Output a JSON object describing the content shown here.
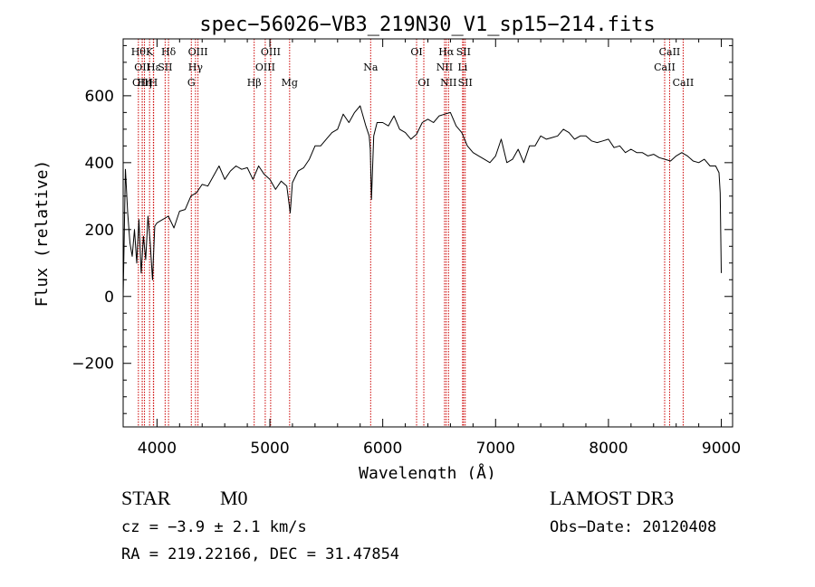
{
  "chart_data": {
    "type": "line",
    "title": "spec−56026−VB3_219N30_V1_sp15−214.fits",
    "xlabel": "Wavelength (Å)",
    "ylabel": "Flux (relative)",
    "xlim": [
      3700,
      9100
    ],
    "ylim": [
      -390,
      770
    ],
    "xticks": [
      4000,
      5000,
      6000,
      7000,
      8000,
      9000
    ],
    "yticks": [
      -200,
      0,
      200,
      400,
      600
    ],
    "grid": false,
    "series": [
      {
        "x": [
          3700,
          3720,
          3740,
          3760,
          3780,
          3800,
          3820,
          3840,
          3860,
          3880,
          3900,
          3920,
          3940,
          3960,
          3980,
          4000,
          4050,
          4100,
          4150,
          4200,
          4250,
          4300,
          4350,
          4400,
          4450,
          4500,
          4550,
          4600,
          4650,
          4700,
          4750,
          4800,
          4850,
          4900,
          4950,
          5000,
          5050,
          5100,
          5150,
          5180,
          5200,
          5250,
          5300,
          5350,
          5400,
          5450,
          5500,
          5550,
          5600,
          5650,
          5700,
          5750,
          5800,
          5850,
          5880,
          5890,
          5900,
          5920,
          5950,
          6000,
          6050,
          6100,
          6150,
          6200,
          6250,
          6300,
          6350,
          6400,
          6450,
          6500,
          6550,
          6600,
          6650,
          6700,
          6750,
          6800,
          6850,
          6900,
          6950,
          7000,
          7050,
          7100,
          7150,
          7200,
          7250,
          7300,
          7350,
          7400,
          7450,
          7500,
          7550,
          7600,
          7650,
          7700,
          7750,
          7800,
          7850,
          7900,
          7950,
          8000,
          8050,
          8100,
          8150,
          8200,
          8250,
          8300,
          8350,
          8400,
          8450,
          8500,
          8550,
          8600,
          8650,
          8700,
          8750,
          8800,
          8850,
          8900,
          8950,
          8980,
          8990,
          9000
        ],
        "y": [
          0,
          380,
          250,
          160,
          120,
          200,
          100,
          230,
          70,
          180,
          110,
          240,
          160,
          50,
          210,
          220,
          230,
          240,
          205,
          255,
          260,
          300,
          310,
          335,
          330,
          360,
          390,
          350,
          375,
          390,
          380,
          385,
          350,
          390,
          365,
          350,
          320,
          345,
          330,
          250,
          340,
          375,
          385,
          410,
          450,
          450,
          470,
          490,
          500,
          545,
          520,
          550,
          570,
          510,
          480,
          440,
          290,
          480,
          520,
          520,
          510,
          540,
          500,
          490,
          470,
          485,
          520,
          530,
          520,
          540,
          545,
          550,
          510,
          490,
          450,
          430,
          420,
          410,
          400,
          420,
          470,
          400,
          410,
          440,
          400,
          450,
          450,
          480,
          470,
          475,
          480,
          500,
          490,
          470,
          480,
          480,
          465,
          460,
          465,
          470,
          445,
          450,
          430,
          440,
          430,
          430,
          420,
          425,
          415,
          410,
          405,
          420,
          430,
          420,
          405,
          400,
          410,
          390,
          390,
          370,
          310,
          70
        ]
      }
    ],
    "lines": [
      {
        "x": 3835,
        "label": "Hθ",
        "row": 0
      },
      {
        "x": 3869,
        "label": "OII",
        "row": 1
      },
      {
        "x": 3869,
        "label": "OIII",
        "row": 2
      },
      {
        "x": 3889,
        "label": "Hη",
        "row": 2
      },
      {
        "x": 3934,
        "label": "K",
        "row": 0
      },
      {
        "x": 3968,
        "label": "H",
        "row": 2
      },
      {
        "x": 3970,
        "label": "Hε",
        "row": 1
      },
      {
        "x": 4072,
        "label": "SII",
        "row": 1
      },
      {
        "x": 4102,
        "label": "Hδ",
        "row": 0
      },
      {
        "x": 4304,
        "label": "G",
        "row": 2
      },
      {
        "x": 4341,
        "label": "Hγ",
        "row": 1
      },
      {
        "x": 4363,
        "label": "OIII",
        "row": 0
      },
      {
        "x": 4861,
        "label": "Hβ",
        "row": 2
      },
      {
        "x": 4959,
        "label": "OIII",
        "row": 1
      },
      {
        "x": 5007,
        "label": "OIII",
        "row": 0
      },
      {
        "x": 5175,
        "label": "Mg",
        "row": 2
      },
      {
        "x": 5893,
        "label": "Na",
        "row": 1
      },
      {
        "x": 6300,
        "label": "OI",
        "row": 0
      },
      {
        "x": 6364,
        "label": "OI",
        "row": 2
      },
      {
        "x": 6548,
        "label": "NII",
        "row": 1
      },
      {
        "x": 6563,
        "label": "Hα",
        "row": 0
      },
      {
        "x": 6583,
        "label": "NII",
        "row": 2
      },
      {
        "x": 6708,
        "label": "Li",
        "row": 1
      },
      {
        "x": 6716,
        "label": "SII",
        "row": 0
      },
      {
        "x": 6731,
        "label": "SII",
        "row": 2
      },
      {
        "x": 8498,
        "label": "CaII",
        "row": 1
      },
      {
        "x": 8542,
        "label": "CaII",
        "row": 0
      },
      {
        "x": 8662,
        "label": "CaII",
        "row": 2
      }
    ]
  },
  "info": {
    "object_class": "STAR",
    "subclass": "M0",
    "survey": "LAMOST DR3",
    "cz": "cz = −3.9 ± 2.1 km/s",
    "obs_date": "Obs−Date: 20120408",
    "radec": "RA = 219.22166, DEC =  31.47854"
  },
  "colors": {
    "spectrum": "#000000",
    "line_marker": "#cc0000",
    "axes": "#000000"
  }
}
